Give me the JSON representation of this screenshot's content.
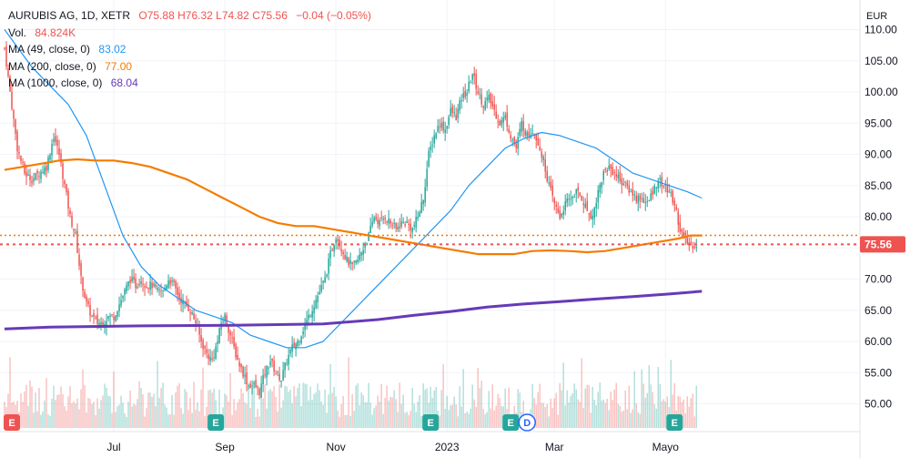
{
  "header": {
    "symbol": "AURUBIS AG, 1D, XETR",
    "open": "O75.88",
    "high": "H76.32",
    "low": "L74.82",
    "close": "C75.56",
    "change": "−0.04 (−0.05%)",
    "volume_label": "Vol.",
    "volume_value": "84.824K",
    "ma49_label": "MA (49, close, 0)",
    "ma49_value": "83.02",
    "ma200_label": "MA (200, close, 0)",
    "ma200_value": "77.00",
    "ma1000_label": "MA (1000, close, 0)",
    "ma1000_value": "68.04"
  },
  "colors": {
    "up": "#26a69a",
    "down": "#ef5350",
    "ma49": "#2196f3",
    "ma200": "#f57c00",
    "ma1000": "#673ab7",
    "grid": "#f0f3fa"
  },
  "chart_data": {
    "type": "candlestick",
    "currency": "EUR",
    "ylim": [
      45,
      112
    ],
    "y_ticks": [
      "50.00",
      "55.00",
      "60.00",
      "65.00",
      "70.00",
      "75.00",
      "80.00",
      "85.00",
      "90.00",
      "95.00",
      "100.00",
      "105.00",
      "110.00"
    ],
    "x_ticks": [
      {
        "label": "Jul",
        "x": 35
      },
      {
        "label": "Sep",
        "x": 96
      },
      {
        "label": "Nov",
        "x": 157
      },
      {
        "label": "2023",
        "x": 218
      },
      {
        "label": "Mar",
        "x": 277
      },
      {
        "label": "Mayo",
        "x": 338
      }
    ],
    "x_range": [
      -25,
      390
    ],
    "close_series": [
      [
        -25,
        107
      ],
      [
        -22,
        100
      ],
      [
        -18,
        91
      ],
      [
        -14,
        87
      ],
      [
        -10,
        86
      ],
      [
        -6,
        87
      ],
      [
        -2,
        88
      ],
      [
        2,
        93
      ],
      [
        5,
        90
      ],
      [
        8,
        85
      ],
      [
        11,
        80
      ],
      [
        14,
        77
      ],
      [
        17,
        70
      ],
      [
        20,
        66
      ],
      [
        23,
        64
      ],
      [
        26,
        63
      ],
      [
        29,
        63
      ],
      [
        32,
        64
      ],
      [
        35,
        64
      ],
      [
        38,
        66
      ],
      [
        41,
        68
      ],
      [
        44,
        70
      ],
      [
        47,
        69
      ],
      [
        50,
        70
      ],
      [
        53,
        69
      ],
      [
        56,
        69
      ],
      [
        59,
        68
      ],
      [
        62,
        68
      ],
      [
        65,
        70
      ],
      [
        68,
        69
      ],
      [
        71,
        67
      ],
      [
        74,
        66
      ],
      [
        77,
        65
      ],
      [
        80,
        63
      ],
      [
        83,
        60
      ],
      [
        86,
        58
      ],
      [
        89,
        57
      ],
      [
        92,
        60
      ],
      [
        94,
        63
      ],
      [
        96,
        64
      ],
      [
        98,
        62
      ],
      [
        100,
        60
      ],
      [
        103,
        57
      ],
      [
        106,
        55
      ],
      [
        109,
        53
      ],
      [
        112,
        53
      ],
      [
        115,
        52
      ],
      [
        118,
        55
      ],
      [
        121,
        57
      ],
      [
        124,
        55
      ],
      [
        127,
        54
      ],
      [
        130,
        57
      ],
      [
        133,
        59
      ],
      [
        136,
        60
      ],
      [
        139,
        62
      ],
      [
        142,
        64
      ],
      [
        145,
        66
      ],
      [
        148,
        68
      ],
      [
        151,
        70
      ],
      [
        154,
        74
      ],
      [
        157,
        77
      ],
      [
        160,
        75
      ],
      [
        163,
        73
      ],
      [
        166,
        72
      ],
      [
        169,
        73
      ],
      [
        172,
        75
      ],
      [
        175,
        77
      ],
      [
        178,
        80
      ],
      [
        181,
        79
      ],
      [
        184,
        80
      ],
      [
        187,
        79
      ],
      [
        190,
        78
      ],
      [
        193,
        79
      ],
      [
        196,
        79
      ],
      [
        199,
        78
      ],
      [
        202,
        80
      ],
      [
        205,
        83
      ],
      [
        208,
        90
      ],
      [
        211,
        93
      ],
      [
        214,
        95
      ],
      [
        217,
        94
      ],
      [
        220,
        97
      ],
      [
        223,
        96
      ],
      [
        226,
        99
      ],
      [
        229,
        100
      ],
      [
        232,
        103
      ],
      [
        235,
        100
      ],
      [
        238,
        98
      ],
      [
        241,
        99
      ],
      [
        244,
        97
      ],
      [
        247,
        95
      ],
      [
        250,
        96
      ],
      [
        253,
        93
      ],
      [
        256,
        91
      ],
      [
        259,
        95
      ],
      [
        262,
        93
      ],
      [
        265,
        94
      ],
      [
        268,
        92
      ],
      [
        271,
        89
      ],
      [
        274,
        85
      ],
      [
        277,
        82
      ],
      [
        280,
        80
      ],
      [
        283,
        82
      ],
      [
        286,
        83
      ],
      [
        289,
        84
      ],
      [
        292,
        83
      ],
      [
        295,
        81
      ],
      [
        298,
        80
      ],
      [
        301,
        84
      ],
      [
        304,
        87
      ],
      [
        307,
        88
      ],
      [
        310,
        87
      ],
      [
        313,
        86
      ],
      [
        316,
        85
      ],
      [
        319,
        84
      ],
      [
        322,
        83
      ],
      [
        325,
        83
      ],
      [
        328,
        82
      ],
      [
        331,
        84
      ],
      [
        334,
        86
      ],
      [
        337,
        85
      ],
      [
        340,
        84
      ],
      [
        343,
        82
      ],
      [
        346,
        78
      ],
      [
        349,
        76
      ],
      [
        352,
        75.5
      ],
      [
        355,
        75.56
      ]
    ],
    "ma_series": [
      {
        "name": "MA (49, close, 0)",
        "color": "#2196f3",
        "values": [
          [
            -25,
            110
          ],
          [
            -10,
            104
          ],
          [
            0,
            101
          ],
          [
            10,
            98
          ],
          [
            20,
            93
          ],
          [
            30,
            85
          ],
          [
            40,
            77
          ],
          [
            50,
            72
          ],
          [
            60,
            69
          ],
          [
            70,
            67
          ],
          [
            80,
            65
          ],
          [
            90,
            64
          ],
          [
            100,
            63
          ],
          [
            110,
            61
          ],
          [
            120,
            60
          ],
          [
            130,
            59
          ],
          [
            140,
            59
          ],
          [
            150,
            60
          ],
          [
            160,
            63
          ],
          [
            170,
            66
          ],
          [
            180,
            69
          ],
          [
            190,
            72
          ],
          [
            200,
            75
          ],
          [
            210,
            78
          ],
          [
            220,
            81
          ],
          [
            230,
            85
          ],
          [
            240,
            88
          ],
          [
            250,
            91
          ],
          [
            260,
            92.5
          ],
          [
            270,
            93.5
          ],
          [
            280,
            93
          ],
          [
            290,
            92
          ],
          [
            300,
            91
          ],
          [
            310,
            89
          ],
          [
            320,
            87
          ],
          [
            330,
            86
          ],
          [
            340,
            85
          ],
          [
            350,
            84
          ],
          [
            358,
            83
          ]
        ]
      },
      {
        "name": "MA (200, close, 0)",
        "color": "#f57c00",
        "values": [
          [
            -25,
            87.5
          ],
          [
            -15,
            88
          ],
          [
            -5,
            88.5
          ],
          [
            5,
            89
          ],
          [
            15,
            89.2
          ],
          [
            25,
            89
          ],
          [
            35,
            89
          ],
          [
            45,
            88.6
          ],
          [
            55,
            88
          ],
          [
            65,
            87
          ],
          [
            75,
            86
          ],
          [
            85,
            84.5
          ],
          [
            95,
            83
          ],
          [
            105,
            81.5
          ],
          [
            115,
            80
          ],
          [
            125,
            79
          ],
          [
            135,
            78.5
          ],
          [
            145,
            78.5
          ],
          [
            155,
            78
          ],
          [
            165,
            77.5
          ],
          [
            175,
            77
          ],
          [
            185,
            76.5
          ],
          [
            195,
            76
          ],
          [
            205,
            75.5
          ],
          [
            215,
            75
          ],
          [
            225,
            74.5
          ],
          [
            235,
            74
          ],
          [
            245,
            74
          ],
          [
            255,
            74
          ],
          [
            265,
            74.5
          ],
          [
            275,
            74.6
          ],
          [
            285,
            74.5
          ],
          [
            295,
            74.3
          ],
          [
            305,
            74.5
          ],
          [
            315,
            75
          ],
          [
            325,
            75.5
          ],
          [
            335,
            76
          ],
          [
            345,
            76.5
          ],
          [
            352,
            77
          ],
          [
            358,
            77
          ]
        ]
      },
      {
        "name": "MA (1000, close, 0)",
        "color": "#673ab7",
        "values": [
          [
            -25,
            62
          ],
          [
            0,
            62.3
          ],
          [
            50,
            62.5
          ],
          [
            100,
            62.6
          ],
          [
            150,
            62.8
          ],
          [
            180,
            63.5
          ],
          [
            200,
            64.2
          ],
          [
            220,
            64.8
          ],
          [
            240,
            65.5
          ],
          [
            260,
            66
          ],
          [
            280,
            66.4
          ],
          [
            300,
            66.8
          ],
          [
            320,
            67.2
          ],
          [
            340,
            67.6
          ],
          [
            358,
            68.04
          ]
        ]
      }
    ],
    "price_lines": [
      {
        "label": "75.56",
        "value": 75.56,
        "color": "#ef5350"
      },
      {
        "value": 77.0,
        "color": "#f57c00"
      }
    ],
    "events": [
      {
        "label": "E",
        "x": -21,
        "color": "#ef5350",
        "shape": "square"
      },
      {
        "label": "E",
        "x": 91,
        "color": "#26a69a",
        "shape": "square"
      },
      {
        "label": "E",
        "x": 209,
        "color": "#26a69a",
        "shape": "square"
      },
      {
        "label": "E",
        "x": 253,
        "color": "#26a69a",
        "shape": "square"
      },
      {
        "label": "D",
        "x": 262,
        "color": "#2962ff",
        "shape": "circle"
      },
      {
        "label": "E",
        "x": 343,
        "color": "#26a69a",
        "shape": "square"
      }
    ]
  }
}
